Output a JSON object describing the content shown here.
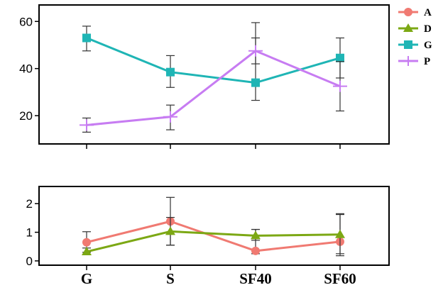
{
  "chart_data": [
    {
      "type": "line",
      "panel": "upper",
      "categories": [
        "G",
        "S",
        "SF40",
        "SF60"
      ],
      "ylim": [
        8,
        67
      ],
      "yticks": [
        20,
        40,
        60
      ],
      "series": [
        {
          "name": "G",
          "color": "#1fb5b5",
          "marker": "square",
          "values": [
            53,
            38.5,
            34,
            44.5
          ],
          "err_low": [
            47.5,
            32,
            26.5,
            36
          ],
          "err_high": [
            58,
            45.5,
            59.5,
            53
          ]
        },
        {
          "name": "P",
          "color": "#c77cf2",
          "marker": "plus",
          "values": [
            16,
            19.5,
            47.5,
            32.5
          ],
          "err_low": [
            13,
            14,
            42,
            22
          ],
          "err_high": [
            19,
            24.5,
            53,
            43
          ]
        }
      ]
    },
    {
      "type": "line",
      "panel": "lower",
      "categories": [
        "G",
        "S",
        "SF40",
        "SF60"
      ],
      "ylim": [
        -0.15,
        2.6
      ],
      "yticks": [
        0,
        1,
        2
      ],
      "series": [
        {
          "name": "A",
          "color": "#f07a72",
          "marker": "circle",
          "values": [
            0.65,
            1.38,
            0.35,
            0.67
          ],
          "err_low": [
            0.3,
            0.55,
            0.25,
            0.18
          ],
          "err_high": [
            1.02,
            2.22,
            1.1,
            1.65
          ]
        },
        {
          "name": "D",
          "color": "#7ca814",
          "marker": "triangle",
          "values": [
            0.32,
            1.03,
            0.88,
            0.92
          ],
          "err_low": [
            0.22,
            0.55,
            0.72,
            0.25
          ],
          "err_high": [
            0.45,
            1.52,
            1.1,
            1.62
          ]
        }
      ]
    }
  ],
  "legend": {
    "position": "right",
    "items": [
      {
        "label": "A",
        "color": "#f07a72",
        "marker": "circle"
      },
      {
        "label": "D",
        "color": "#7ca814",
        "marker": "triangle"
      },
      {
        "label": "G",
        "color": "#1fb5b5",
        "marker": "square"
      },
      {
        "label": "P",
        "color": "#c77cf2",
        "marker": "plus"
      }
    ]
  }
}
